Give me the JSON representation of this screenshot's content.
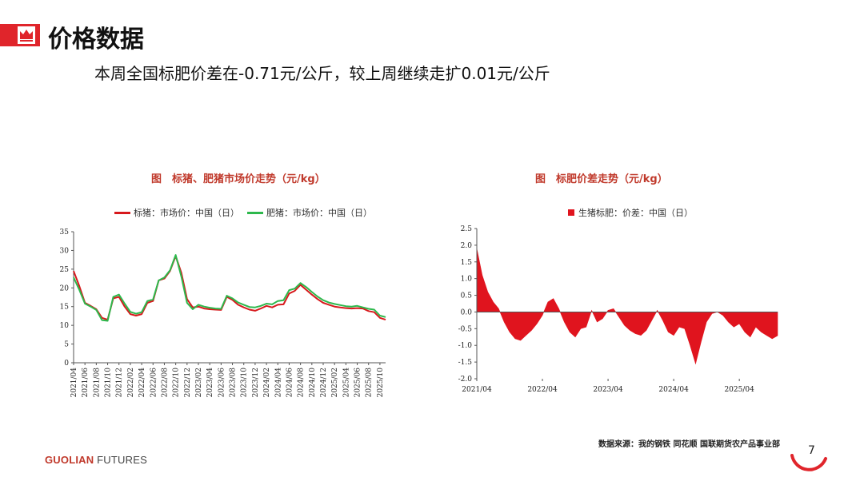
{
  "header": {
    "title": "价格数据"
  },
  "summary": "本周全国标肥价差在-0.71元/公斤，较上周继续走扩0.01元/公斤",
  "charts": [
    {
      "title": "图　标猪、肥猪市场价走势（元/kg）",
      "legend": [
        "标猪：市场价：中国（日）",
        "肥猪：市场价：中国（日）"
      ],
      "colors": [
        "#d7191c",
        "#2db84c"
      ]
    },
    {
      "title": "图　标肥价差走势（元/kg）",
      "legend": [
        "生猪标肥：价差：中国（日）"
      ],
      "colors": [
        "#e0141e"
      ]
    }
  ],
  "chart_data": [
    {
      "type": "line",
      "ylim": [
        0,
        35
      ],
      "yticks": [
        0,
        5,
        10,
        15,
        20,
        25,
        30,
        35
      ],
      "x_tick_labels": [
        "2021/04",
        "2021/06",
        "2021/08",
        "2021/10",
        "2021/12",
        "2022/02",
        "2022/04",
        "2022/06",
        "2022/08",
        "2022/10",
        "2022/12",
        "2023/02",
        "2023/04",
        "2023/06",
        "2023/08",
        "2023/10",
        "2023/12",
        "2024/02",
        "2024/04",
        "2024/06",
        "2024/08",
        "2024/10",
        "2024/12",
        "2025/02",
        "2025/04",
        "2025/06",
        "2025/08",
        "2025/10"
      ],
      "x": [
        "2021-04",
        "2021-05",
        "2021-06",
        "2021-07",
        "2021-08",
        "2021-09",
        "2021-10",
        "2021-11",
        "2021-12",
        "2022-01",
        "2022-02",
        "2022-03",
        "2022-04",
        "2022-05",
        "2022-06",
        "2022-07",
        "2022-08",
        "2022-09",
        "2022-10",
        "2022-11",
        "2022-12",
        "2023-01",
        "2023-02",
        "2023-03",
        "2023-04",
        "2023-05",
        "2023-06",
        "2023-07",
        "2023-08",
        "2023-09",
        "2023-10",
        "2023-11",
        "2023-12",
        "2024-01",
        "2024-02",
        "2024-03",
        "2024-04",
        "2024-05",
        "2024-06",
        "2024-07",
        "2024-08",
        "2024-09",
        "2024-10",
        "2024-11",
        "2024-12",
        "2025-01",
        "2025-02",
        "2025-03",
        "2025-04",
        "2025-05",
        "2025-06",
        "2025-07",
        "2025-08",
        "2025-09",
        "2025-10",
        "2025-11"
      ],
      "series": [
        {
          "name": "标猪：市场价：中国（日）",
          "values": [
            24.5,
            20.5,
            16.0,
            15.2,
            14.3,
            12.0,
            11.5,
            17.2,
            17.6,
            15.0,
            13.0,
            12.6,
            13.0,
            16.0,
            16.5,
            22.0,
            22.5,
            24.5,
            28.5,
            24.0,
            17.0,
            14.8,
            15.0,
            14.5,
            14.3,
            14.2,
            14.1,
            17.6,
            16.8,
            15.5,
            14.8,
            14.2,
            13.9,
            14.5,
            15.2,
            14.8,
            15.5,
            15.6,
            18.5,
            19.2,
            20.8,
            19.5,
            18.2,
            17.0,
            16.0,
            15.5,
            15.0,
            14.8,
            14.6,
            14.5,
            14.6,
            14.5,
            13.8,
            13.5,
            12.0,
            11.5
          ]
        },
        {
          "name": "肥猪：市场价：中国（日）",
          "values": [
            22.8,
            19.5,
            15.8,
            15.0,
            14.1,
            11.4,
            11.2,
            17.6,
            18.2,
            15.8,
            13.6,
            13.1,
            13.5,
            16.5,
            16.9,
            22.0,
            22.8,
            24.7,
            28.8,
            23.0,
            16.0,
            14.3,
            15.5,
            15.0,
            14.7,
            14.5,
            14.4,
            17.9,
            17.2,
            16.1,
            15.5,
            14.9,
            14.8,
            15.2,
            15.8,
            15.6,
            16.5,
            16.7,
            19.4,
            19.8,
            21.3,
            20.2,
            18.9,
            17.7,
            16.7,
            16.1,
            15.7,
            15.4,
            15.1,
            15.0,
            15.2,
            14.8,
            14.4,
            14.2,
            12.6,
            12.2
          ]
        }
      ]
    },
    {
      "type": "area",
      "ylim": [
        -2.0,
        2.5
      ],
      "yticks": [
        -2.0,
        -1.5,
        -1.0,
        -0.5,
        0.0,
        0.5,
        1.0,
        1.5,
        2.0,
        2.5
      ],
      "ytick_labels": [
        "-2.0",
        "-1.5",
        "-1.0",
        "-0.5",
        "0.0",
        "0.5",
        "1.0",
        "1.5",
        "2.0",
        "2.5"
      ],
      "x_tick_labels": [
        "2021/04",
        "2022/04",
        "2023/04",
        "2024/04",
        "2025/04"
      ],
      "x": [
        "2021-04",
        "2021-05",
        "2021-06",
        "2021-07",
        "2021-08",
        "2021-09",
        "2021-10",
        "2021-11",
        "2021-12",
        "2022-01",
        "2022-02",
        "2022-03",
        "2022-04",
        "2022-05",
        "2022-06",
        "2022-07",
        "2022-08",
        "2022-09",
        "2022-10",
        "2022-11",
        "2022-12",
        "2023-01",
        "2023-02",
        "2023-03",
        "2023-04",
        "2023-05",
        "2023-06",
        "2023-07",
        "2023-08",
        "2023-09",
        "2023-10",
        "2023-11",
        "2023-12",
        "2024-01",
        "2024-02",
        "2024-03",
        "2024-04",
        "2024-05",
        "2024-06",
        "2024-07",
        "2024-08",
        "2024-09",
        "2024-10",
        "2024-11",
        "2024-12",
        "2025-01",
        "2025-02",
        "2025-03",
        "2025-04",
        "2025-05",
        "2025-06",
        "2025-07",
        "2025-08",
        "2025-09",
        "2025-10",
        "2025-11"
      ],
      "series": [
        {
          "name": "生猪标肥：价差：中国（日）",
          "values": [
            1.9,
            1.1,
            0.6,
            0.3,
            0.1,
            -0.3,
            -0.6,
            -0.8,
            -0.85,
            -0.7,
            -0.55,
            -0.35,
            -0.1,
            0.3,
            0.4,
            0.1,
            -0.3,
            -0.6,
            -0.75,
            -0.5,
            -0.45,
            0.05,
            -0.3,
            -0.2,
            0.05,
            0.1,
            -0.15,
            -0.4,
            -0.55,
            -0.65,
            -0.7,
            -0.55,
            -0.25,
            0.05,
            -0.25,
            -0.6,
            -0.7,
            -0.45,
            -0.5,
            -1.0,
            -1.55,
            -0.9,
            -0.3,
            -0.05,
            0.0,
            -0.1,
            -0.3,
            -0.45,
            -0.35,
            -0.6,
            -0.75,
            -0.45,
            -0.6,
            -0.7,
            -0.8,
            -0.71
          ]
        }
      ]
    }
  ],
  "source": "数据来源：我的钢铁 同花顺 国联期货农产品事业部",
  "footer": {
    "brand_bold": "GUOLIAN",
    "brand_rest": " FUTURES",
    "page": "7"
  }
}
